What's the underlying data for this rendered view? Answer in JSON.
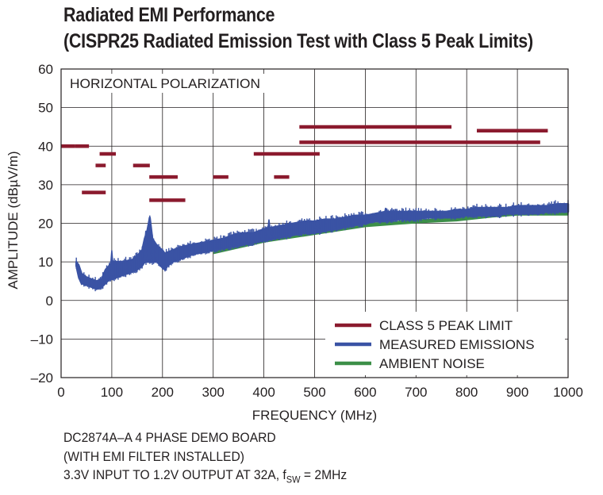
{
  "title_line1": "Radiated EMI Performance",
  "title_line2": "(CISPR25 Radiated Emission Test with Class 5 Peak Limits)",
  "notes": {
    "line1": "DC2874A–A 4 PHASE DEMO BOARD",
    "line2": "(WITH EMI FILTER INSTALLED)",
    "line3_pre": "3.3V INPUT TO 1.2V OUTPUT AT 32A, f",
    "line3_sub": "SW",
    "line3_post": " = 2MHz"
  },
  "colors": {
    "limit": "#8b1a2e",
    "measured": "#3a53a4",
    "ambient": "#3c8f48",
    "grid": "#231f20"
  },
  "chart_data": {
    "type": "line",
    "inner_label": "HORIZONTAL POLARIZATION",
    "xlabel": "FREQUENCY (MHz)",
    "ylabel": "AMPLITUDE (dBµV/m)",
    "xlim": [
      0,
      1000
    ],
    "ylim": [
      -20,
      60
    ],
    "x_ticks": [
      0,
      100,
      200,
      300,
      400,
      500,
      600,
      700,
      800,
      900,
      1000
    ],
    "y_ticks": [
      60,
      50,
      40,
      30,
      20,
      10,
      0,
      -10,
      -20
    ],
    "y_tick_labels": [
      "60",
      "50",
      "40",
      "30",
      "20",
      "10",
      "0",
      "–10",
      "–20"
    ],
    "grid": true,
    "legend_position": "bottom-right",
    "series": [
      {
        "name": "CLASS 5 PEAK LIMIT",
        "kind": "segments",
        "segments": [
          {
            "x": [
              0,
              28
            ],
            "y": 40
          },
          {
            "x": [
              28,
              55
            ],
            "y": 40
          },
          {
            "x": [
              41,
              88
            ],
            "y": 28
          },
          {
            "x": [
              68,
              88
            ],
            "y": 35
          },
          {
            "x": [
              76,
              108
            ],
            "y": 38
          },
          {
            "x": [
              142,
              175
            ],
            "y": 35
          },
          {
            "x": [
              174,
              245
            ],
            "y": 26
          },
          {
            "x": [
              174,
              230
            ],
            "y": 32
          },
          {
            "x": [
              300,
              330
            ],
            "y": 32
          },
          {
            "x": [
              380,
              510
            ],
            "y": 38
          },
          {
            "x": [
              420,
              450
            ],
            "y": 32
          },
          {
            "x": [
              470,
              770
            ],
            "y": 45
          },
          {
            "x": [
              470,
              945
            ],
            "y": 41
          },
          {
            "x": [
              820,
              960
            ],
            "y": 44
          }
        ]
      },
      {
        "name": "MEASURED EMISSIONS",
        "kind": "band",
        "x": [
          30,
          35,
          40,
          50,
          60,
          70,
          80,
          88,
          95,
          100,
          120,
          140,
          150,
          160,
          165,
          170,
          175,
          180,
          190,
          200,
          205,
          210,
          220,
          240,
          260,
          280,
          300,
          320,
          340,
          360,
          380,
          400,
          420,
          440,
          460,
          480,
          500,
          520,
          540,
          560,
          580,
          600,
          620,
          640,
          660,
          680,
          700,
          720,
          740,
          760,
          780,
          800,
          820,
          840,
          860,
          880,
          900,
          920,
          940,
          960,
          980,
          1000
        ],
        "y_low": [
          9,
          6,
          4.5,
          4,
          3.5,
          3,
          3.5,
          4.5,
          5.5,
          5.5,
          6.5,
          7.5,
          8,
          9,
          10,
          10,
          10,
          10,
          10,
          8.5,
          8,
          9,
          10,
          11,
          12,
          12.5,
          13,
          13.5,
          14,
          14.5,
          15,
          15.5,
          16,
          16.5,
          17,
          17.5,
          17.5,
          18,
          18.5,
          19,
          19.5,
          20,
          20.5,
          20.5,
          21,
          21,
          21,
          21.5,
          21.5,
          21.5,
          21.5,
          22,
          22,
          22,
          22,
          22.5,
          22.5,
          22.5,
          22.5,
          23,
          23,
          23
        ],
        "y_high": [
          10,
          9,
          7,
          6,
          5.5,
          5,
          5.5,
          8,
          9,
          10,
          10,
          10.5,
          11.5,
          13,
          16,
          18,
          21.5,
          16,
          14,
          13,
          12,
          12.5,
          13,
          14,
          14.5,
          15,
          15.5,
          16,
          17,
          17.5,
          17.5,
          18.5,
          19,
          19.5,
          20,
          20.5,
          20.5,
          21,
          21,
          21.5,
          22,
          22,
          22.5,
          23,
          23,
          23,
          23,
          23,
          23,
          23,
          23.5,
          23.5,
          24,
          24,
          24,
          24,
          24.5,
          24.5,
          24.5,
          24.5,
          25,
          25
        ]
      },
      {
        "name": "AMBIENT NOISE",
        "kind": "line",
        "x": [
          300,
          400,
          500,
          600,
          700,
          780,
          850,
          900,
          950,
          1000
        ],
        "y": [
          12.5,
          15.5,
          17.5,
          19.5,
          20.5,
          21,
          22,
          22.5,
          22.5,
          22.5
        ]
      }
    ],
    "peaks": [
      {
        "x": 100,
        "y": 13
      },
      {
        "x": 167,
        "y": 18
      },
      {
        "x": 174,
        "y": 21.5
      },
      {
        "x": 410,
        "y": 21
      },
      {
        "x": 505,
        "y": 21
      },
      {
        "x": 640,
        "y": 24
      }
    ]
  }
}
